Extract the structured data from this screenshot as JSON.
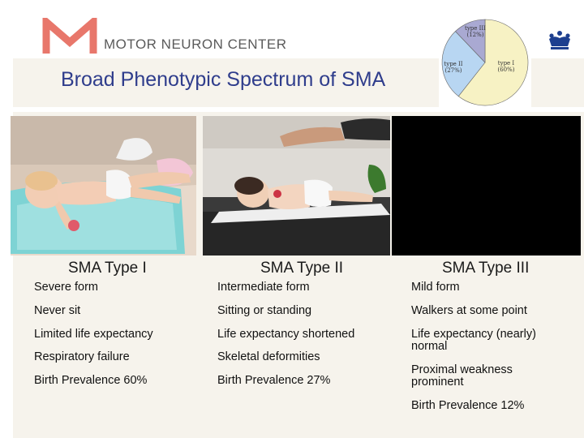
{
  "header": {
    "logo_text": "MOTOR NEURON CENTER",
    "title": "Broad Phenotypic Spectrum of SMA",
    "logo_icon": "m-letter-logo-icon",
    "crown_icon": "crown-icon"
  },
  "pie": {
    "type_i": "type I",
    "type_i_pct": "(60%)",
    "type_ii": "type II",
    "type_ii_pct": "(27%)",
    "type_iii": "type III",
    "type_iii_pct": "(12%)"
  },
  "chart_data": {
    "type": "pie",
    "labels": [
      "type I",
      "type II",
      "type III"
    ],
    "values": [
      60,
      27,
      12
    ],
    "colors": [
      "#f7f2c4",
      "#b8d6f2",
      "#a9a9d2"
    ]
  },
  "columns": [
    {
      "heading": "SMA Type I",
      "items": [
        "Severe form",
        "Never sit",
        "Limited life expectancy",
        "Respiratory failure",
        "Birth Prevalence 60%"
      ]
    },
    {
      "heading": "SMA Type II",
      "items": [
        "Intermediate form",
        "Sitting or standing",
        "Life expectancy shortened",
        "Skeletal deformities",
        "Birth Prevalence 27%"
      ]
    },
    {
      "heading": "SMA Type III",
      "items": [
        "Mild form",
        "Walkers at some point",
        "Life expectancy (nearly) normal",
        "Proximal weakness prominent",
        "Birth Prevalence 12%"
      ]
    }
  ]
}
